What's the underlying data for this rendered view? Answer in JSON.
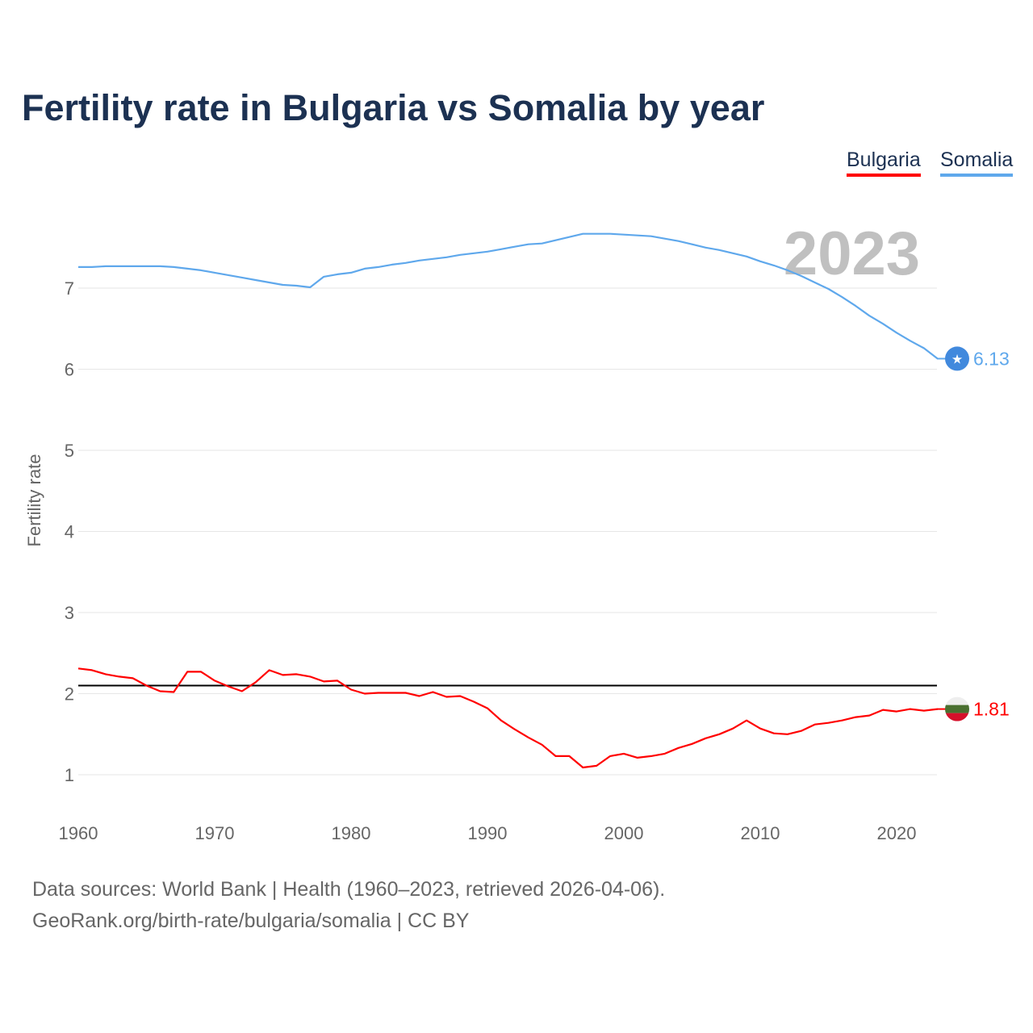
{
  "title": "Fertility rate in Bulgaria vs Somalia by year",
  "footer": {
    "line1": "Data sources: World Bank | Health (1960–2023, retrieved 2026-04-06).",
    "line2": "GeoRank.org/birth-rate/bulgaria/somalia | CC BY"
  },
  "chart_data": {
    "type": "line",
    "title": "Fertility rate in Bulgaria vs Somalia by year",
    "xlabel": "",
    "ylabel": "Fertility rate",
    "xlim": [
      1960,
      2023
    ],
    "ylim": [
      1,
      7.7
    ],
    "x_ticks": [
      "1960",
      "1970",
      "1980",
      "1990",
      "2000",
      "2010",
      "2020"
    ],
    "y_ticks": [
      "1",
      "2",
      "3",
      "4",
      "5",
      "6",
      "7"
    ],
    "year_watermark": "2023",
    "reference_line": {
      "value": 2.1,
      "color": "#000000"
    },
    "legend": "top-right",
    "x": [
      1960,
      1961,
      1962,
      1963,
      1964,
      1965,
      1966,
      1967,
      1968,
      1969,
      1970,
      1971,
      1972,
      1973,
      1974,
      1975,
      1976,
      1977,
      1978,
      1979,
      1980,
      1981,
      1982,
      1983,
      1984,
      1985,
      1986,
      1987,
      1988,
      1989,
      1990,
      1991,
      1992,
      1993,
      1994,
      1995,
      1996,
      1997,
      1998,
      1999,
      2000,
      2001,
      2002,
      2003,
      2004,
      2005,
      2006,
      2007,
      2008,
      2009,
      2010,
      2011,
      2012,
      2013,
      2014,
      2015,
      2016,
      2017,
      2018,
      2019,
      2020,
      2021,
      2022,
      2023
    ],
    "series": [
      {
        "name": "Bulgaria",
        "color": "#ff0000",
        "end_label": "1.81",
        "flag": "bulgaria-flag",
        "values": [
          2.31,
          2.29,
          2.24,
          2.21,
          2.19,
          2.1,
          2.03,
          2.02,
          2.27,
          2.27,
          2.16,
          2.09,
          2.03,
          2.14,
          2.29,
          2.23,
          2.24,
          2.21,
          2.15,
          2.16,
          2.05,
          2.0,
          2.01,
          2.01,
          2.01,
          1.97,
          2.02,
          1.96,
          1.97,
          1.9,
          1.82,
          1.67,
          1.56,
          1.46,
          1.37,
          1.23,
          1.23,
          1.09,
          1.11,
          1.23,
          1.26,
          1.21,
          1.23,
          1.26,
          1.33,
          1.38,
          1.45,
          1.5,
          1.57,
          1.67,
          1.57,
          1.51,
          1.5,
          1.54,
          1.62,
          1.64,
          1.67,
          1.71,
          1.73,
          1.8,
          1.78,
          1.81,
          1.79,
          1.81
        ]
      },
      {
        "name": "Somalia",
        "color": "#5fa8ec",
        "end_label": "6.13",
        "flag": "somalia-flag",
        "values": [
          7.26,
          7.26,
          7.27,
          7.27,
          7.27,
          7.27,
          7.27,
          7.26,
          7.24,
          7.22,
          7.19,
          7.16,
          7.13,
          7.1,
          7.07,
          7.04,
          7.03,
          7.01,
          7.14,
          7.17,
          7.19,
          7.24,
          7.26,
          7.29,
          7.31,
          7.34,
          7.36,
          7.38,
          7.41,
          7.43,
          7.45,
          7.48,
          7.51,
          7.54,
          7.55,
          7.59,
          7.63,
          7.67,
          7.67,
          7.67,
          7.66,
          7.65,
          7.64,
          7.61,
          7.58,
          7.54,
          7.5,
          7.47,
          7.43,
          7.39,
          7.33,
          7.28,
          7.22,
          7.15,
          7.07,
          6.99,
          6.89,
          6.78,
          6.66,
          6.56,
          6.45,
          6.35,
          6.26,
          6.13
        ]
      }
    ]
  }
}
